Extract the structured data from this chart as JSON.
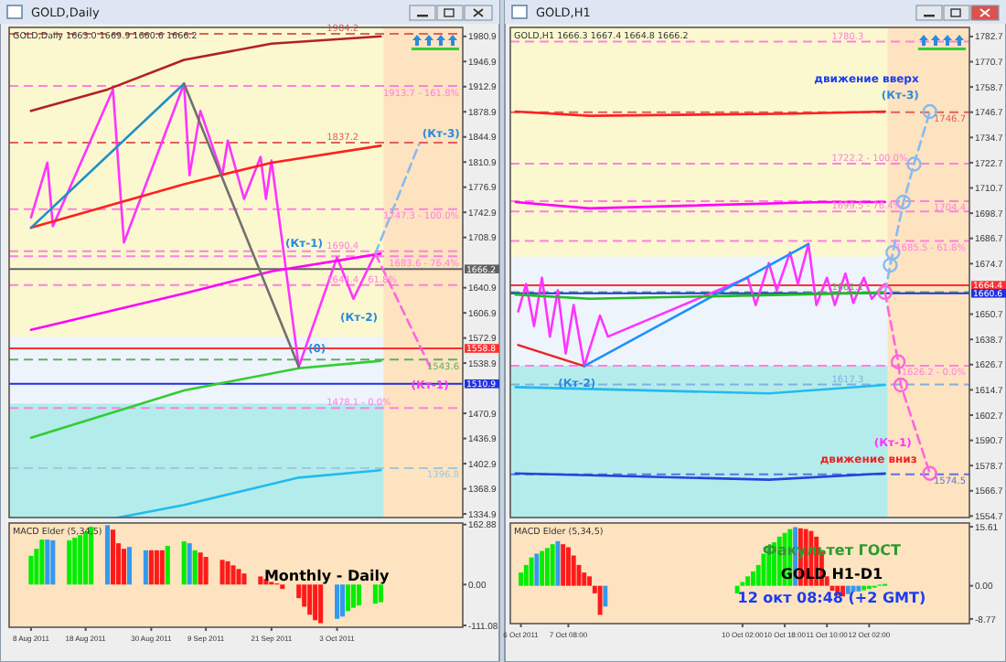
{
  "chart_data": [
    {
      "type": "line",
      "title": "GOLD,Daily",
      "subtitle": "GOLD,Daily  1663.0 1669.9 1660.6 1666.2",
      "xlim": [
        "2011-08-04",
        "2011-10-26"
      ],
      "ylim": [
        1330,
        1993
      ],
      "yticks": [
        1334.9,
        1368.9,
        1402.9,
        1436.9,
        1470.9,
        1538.9,
        1572.9,
        1606.9,
        1640.9,
        1708.9,
        1742.9,
        1776.9,
        1810.9,
        1844.9,
        1878.9,
        1912.9,
        1946.9,
        1980.9
      ],
      "tick_labels": "y",
      "bands": [
        {
          "axis": "y",
          "from": 1574,
          "to": 1993,
          "color": "#fbf8cf"
        },
        {
          "axis": "y",
          "from": 1484,
          "to": 1574,
          "color": "#eef4fc"
        },
        {
          "axis": "y",
          "from": 1330,
          "to": 1484,
          "color": "#b4ecec"
        },
        {
          "axis": "x",
          "from": "2011-10-11T12:00",
          "to": "2011-10-26",
          "color": "#fde3c0"
        }
      ],
      "ref_lines": [
        {
          "axis": "y",
          "value": 1984.2,
          "label": "1984.2",
          "color": "#e06060",
          "line_style": "dashed"
        },
        {
          "axis": "y",
          "value": 1913.7,
          "label": "1913.7 - 161.8%",
          "color": "#ff80e0",
          "line_style": "dashed"
        },
        {
          "axis": "y",
          "value": 1837.2,
          "label": "1837.2",
          "color": "#e06060",
          "line_style": "dashed"
        },
        {
          "axis": "y",
          "value": 1747.3,
          "label": "1747.3 - 100.0%",
          "color": "#ff80e0",
          "line_style": "dashed"
        },
        {
          "axis": "y",
          "value": 1690.4,
          "label": "1690.4",
          "color": "#ff80e0",
          "line_style": "dashed"
        },
        {
          "axis": "y",
          "value": 1683.6,
          "label": "1683.6 - 76.4%",
          "color": "#ff80e0",
          "line_style": "dashed"
        },
        {
          "axis": "y",
          "value": 1644.4,
          "label": "1644.4 - 61.8%",
          "color": "#ff80e0",
          "line_style": "dashed"
        },
        {
          "axis": "y",
          "value": 1543.6,
          "label": "1543.6",
          "color": "#60b060",
          "line_style": "dashed"
        },
        {
          "axis": "y",
          "value": 1478.1,
          "label": "1478.1 - 0.0%",
          "color": "#ff80e0",
          "line_style": "dashed"
        },
        {
          "axis": "y",
          "value": 1396.8,
          "label": "1396.8",
          "color": "#a0c8e0",
          "line_style": "dashed"
        },
        {
          "axis": "y",
          "value": 1666.2,
          "label": "1666.2",
          "color": "#606060",
          "line_style": "solid"
        },
        {
          "axis": "y",
          "value": 1558.8,
          "label": "1558.8",
          "color": "#ff3030",
          "line_style": "solid"
        },
        {
          "axis": "y",
          "value": 1510.9,
          "label": "1510.9",
          "color": "#2030e0",
          "line_style": "solid"
        }
      ],
      "series": [
        {
          "color": "#ff33ff",
          "x": [
            "2011-08-08",
            "2011-08-11",
            "2011-08-12",
            "2011-08-23",
            "2011-08-25",
            "2011-09-05",
            "2011-09-06",
            "2011-09-08",
            "2011-09-12",
            "2011-09-13",
            "2011-09-16",
            "2011-09-19",
            "2011-09-20",
            "2011-09-21",
            "2011-09-26",
            "2011-10-03",
            "2011-10-06",
            "2011-10-10"
          ],
          "values": [
            1736,
            1810,
            1724,
            1909,
            1702,
            1917,
            1793,
            1880,
            1793,
            1840,
            1761,
            1818,
            1761,
            1813,
            1534,
            1682,
            1626,
            1687
          ]
        },
        {
          "color": "#b22222",
          "x": [
            "2011-08-08",
            "2011-08-22",
            "2011-09-05",
            "2011-09-21",
            "2011-10-11"
          ],
          "values": [
            1880,
            1909,
            1949,
            1971,
            1981
          ]
        },
        {
          "color": "#ff2020",
          "x": [
            "2011-08-08",
            "2011-09-05",
            "2011-09-21",
            "2011-10-11"
          ],
          "values": [
            1722,
            1781,
            1810,
            1833
          ]
        },
        {
          "color": "#ff00ff",
          "x": [
            "2011-08-08",
            "2011-09-05",
            "2011-09-21",
            "2011-10-11"
          ],
          "values": [
            1584,
            1633,
            1663,
            1687
          ]
        },
        {
          "color": "#33cc33",
          "x": [
            "2011-08-08",
            "2011-09-05",
            "2011-09-26",
            "2011-10-11"
          ],
          "values": [
            1438,
            1502,
            1532,
            1542
          ]
        },
        {
          "color": "#22bbee",
          "x": [
            "2011-08-24",
            "2011-09-05",
            "2011-09-26",
            "2011-10-11"
          ],
          "values": [
            1330,
            1347,
            1384,
            1394
          ]
        },
        {
          "color": "#1e90c8",
          "x": [
            "2011-08-08",
            "2011-09-05"
          ],
          "values": [
            1722,
            1917
          ]
        },
        {
          "color": "#707070",
          "x": [
            "2011-09-05",
            "2011-09-26"
          ],
          "values": [
            1917,
            1534
          ]
        },
        {
          "color": "#88bbee",
          "line_style": "dashed",
          "x": [
            "2011-10-10",
            "2011-10-18"
          ],
          "values": [
            1687,
            1835
          ]
        },
        {
          "color": "#ff66dd",
          "line_style": "dashed",
          "x": [
            "2011-10-10",
            "2011-10-20"
          ],
          "values": [
            1687,
            1534
          ]
        }
      ],
      "annotations": [
        {
          "text": "(Кт-3)",
          "x": "2011-10-18",
          "y": 1835
        },
        {
          "text": "(Кт-1)",
          "x": "2011-10-03",
          "y": 1682
        },
        {
          "text": "(Кт-2)",
          "x": "2011-10-06",
          "y": 1626
        },
        {
          "text": "(0)",
          "x": "2011-09-26",
          "y": 1534
        },
        {
          "text": "(Кт-1)",
          "x": "2011-10-20",
          "y": 1534
        }
      ]
    },
    {
      "type": "bar",
      "title": "MACD Elder (5,34,5)",
      "xlim": [
        "2011-08-04",
        "2011-10-26"
      ],
      "xticks": [
        {
          "value": "2011-08-08",
          "label": "8 Aug 2011"
        },
        {
          "value": "2011-08-18",
          "label": "18 Aug 2011"
        },
        {
          "value": "2011-08-30",
          "label": "30 Aug 2011"
        },
        {
          "value": "2011-09-09",
          "label": "9 Sep 2011"
        },
        {
          "value": "2011-09-21",
          "label": "21 Sep 2011"
        },
        {
          "value": "2011-10-03",
          "label": "3 Oct 2011"
        }
      ],
      "ylim": [
        -116,
        167
      ],
      "yticks": [
        162.88,
        {
          "value": 0,
          "label": "0.00"
        },
        -111.08
      ],
      "x": [
        "2011-08-08",
        "2011-08-09",
        "2011-08-10",
        "2011-08-11",
        "2011-08-12",
        "2011-08-15",
        "2011-08-16",
        "2011-08-17",
        "2011-08-18",
        "2011-08-19",
        "2011-08-22",
        "2011-08-23",
        "2011-08-24",
        "2011-08-25",
        "2011-08-26",
        "2011-08-29",
        "2011-08-30",
        "2011-08-31",
        "2011-09-01",
        "2011-09-02",
        "2011-09-05",
        "2011-09-06",
        "2011-09-07",
        "2011-09-08",
        "2011-09-09",
        "2011-09-12",
        "2011-09-13",
        "2011-09-14",
        "2011-09-15",
        "2011-09-16",
        "2011-09-19",
        "2011-09-20",
        "2011-09-21",
        "2011-09-22",
        "2011-09-23",
        "2011-09-26",
        "2011-09-27",
        "2011-09-28",
        "2011-09-29",
        "2011-09-30",
        "2011-10-03",
        "2011-10-04",
        "2011-10-05",
        "2011-10-06",
        "2011-10-07",
        "2011-10-10",
        "2011-10-11"
      ],
      "values": [
        78,
        97,
        122,
        122,
        120,
        120,
        127,
        134,
        142,
        157,
        161,
        149,
        112,
        97,
        102,
        93,
        93,
        93,
        93,
        105,
        117,
        112,
        93,
        87,
        75,
        67,
        63,
        52,
        42,
        30,
        22,
        15,
        7,
        3,
        -12,
        -37,
        -60,
        -82,
        -97,
        -105,
        -93,
        -87,
        -72,
        -63,
        -57,
        -52,
        -48
      ],
      "colors": [
        "#00ee00",
        "#00ee00",
        "#00ee00",
        "#3399ee",
        "#3399ee",
        "#00ee00",
        "#00ee00",
        "#00ee00",
        "#00ee00",
        "#00ee00",
        "#3399ee",
        "#ff1a1a",
        "#ff1a1a",
        "#ff1a1a",
        "#3399ee",
        "#3399ee",
        "#ff1a1a",
        "#ff1a1a",
        "#ff1a1a",
        "#00ee00",
        "#00ee00",
        "#3399ee",
        "#00ee00",
        "#ff1a1a",
        "#ff1a1a",
        "#ff1a1a",
        "#ff1a1a",
        "#ff1a1a",
        "#ff1a1a",
        "#ff1a1a",
        "#ff1a1a",
        "#ff1a1a",
        "#ff1a1a",
        "#ff1a1a",
        "#ff1a1a",
        "#ff1a1a",
        "#ff1a1a",
        "#ff1a1a",
        "#ff1a1a",
        "#ff1a1a",
        "#3399ee",
        "#3399ee",
        "#00ee00",
        "#00ee00",
        "#00ee00",
        "#00ee00",
        "#00ee00"
      ],
      "annotations": [
        "Monthly - Daily"
      ]
    },
    {
      "type": "line",
      "title": "GOLD,H1",
      "subtitle": "GOLD,H1  1666.3 1667.4 1664.8 1666.2",
      "xlim": [
        "2011-10-06T10:00",
        "2011-10-13T16:00"
      ],
      "ylim": [
        1554,
        1787
      ],
      "yticks": [
        1554.7,
        1566.7,
        1578.7,
        1590.7,
        1602.7,
        1614.7,
        1626.7,
        1638.7,
        1650.7,
        1674.7,
        1686.7,
        1698.7,
        1710.7,
        1722.7,
        1734.7,
        1746.7,
        1758.7,
        1770.7,
        1782.7
      ],
      "tick_labels": "y",
      "bands": [
        {
          "axis": "y",
          "from": 1678,
          "to": 1787,
          "color": "#fbf8cf"
        },
        {
          "axis": "y",
          "from": 1626.2,
          "to": 1678,
          "color": "#eef4fc"
        },
        {
          "axis": "y",
          "from": 1554,
          "to": 1626.2,
          "color": "#b4ecec"
        },
        {
          "axis": "x",
          "from": "2011-10-12T09:00",
          "to": "2011-10-13T16:00",
          "color": "#fde3c0"
        }
      ],
      "ref_lines": [
        {
          "axis": "y",
          "value": 1780.3,
          "label": "1780.3",
          "color": "#ff80e0",
          "line_style": "dashed"
        },
        {
          "axis": "y",
          "value": 1746.7,
          "label": "1746.7",
          "color": "#e06060",
          "line_style": "dashed"
        },
        {
          "axis": "y",
          "value": 1722.2,
          "label": "1722.2 - 100.0%",
          "color": "#ff80e0",
          "line_style": "dashed"
        },
        {
          "axis": "y",
          "value": 1704.4,
          "label": "1704.4",
          "color": "#ff80e0",
          "line_style": "dashed"
        },
        {
          "axis": "y",
          "value": 1699.5,
          "label": "1699.5 - 76.4%",
          "color": "#ff80e0",
          "line_style": "dashed"
        },
        {
          "axis": "y",
          "value": 1685.5,
          "label": "1685.5 - 61.8%",
          "color": "#ff80e0",
          "line_style": "dashed"
        },
        {
          "axis": "y",
          "value": 1661.1,
          "label": "1661.1",
          "color": "#60b060",
          "line_style": "dashed"
        },
        {
          "axis": "y",
          "value": 1626.2,
          "label": "1626.2 - 0.0%",
          "color": "#ff80e0",
          "line_style": "dashed"
        },
        {
          "axis": "y",
          "value": 1617.3,
          "label": "1617.3",
          "color": "#80b0e0",
          "line_style": "dashed"
        },
        {
          "axis": "y",
          "value": 1574.5,
          "label": "1574.5",
          "color": "#6070e0",
          "line_style": "dashed"
        },
        {
          "axis": "y",
          "value": 1664.4,
          "label": "1664.4",
          "color": "#ff3030",
          "line_style": "solid"
        },
        {
          "axis": "y",
          "value": 1660.6,
          "label": "1660.6",
          "color": "#2030e0",
          "line_style": "solid"
        }
      ],
      "series": [
        {
          "color": "#ff33ff",
          "x": [
            "2011-10-06T13:00",
            "2011-10-06T16:00",
            "2011-10-06T19:00",
            "2011-10-06T22:00",
            "2011-10-07T01:00",
            "2011-10-07T04:00",
            "2011-10-07T07:00",
            "2011-10-07T10:00",
            "2011-10-07T14:00",
            "2011-10-07T20:00",
            "2011-10-07T23:00",
            "2011-10-10T04:00",
            "2011-10-10T07:00",
            "2011-10-10T12:00",
            "2011-10-10T15:00",
            "2011-10-10T20:00",
            "2011-10-10T23:00",
            "2011-10-11T03:00",
            "2011-10-11T06:00",
            "2011-10-11T10:00",
            "2011-10-11T13:00",
            "2011-10-11T17:00",
            "2011-10-11T20:00",
            "2011-10-12T00:00",
            "2011-10-12T03:00",
            "2011-10-12T08:00"
          ],
          "values": [
            1652,
            1665,
            1645,
            1668,
            1640,
            1662,
            1632,
            1655,
            1626,
            1650,
            1640,
            1668,
            1655,
            1675,
            1662,
            1680,
            1665,
            1684,
            1655,
            1668,
            1655,
            1670,
            1656,
            1668,
            1658,
            1665
          ]
        },
        {
          "color": "#ee2222",
          "x": [
            "2011-10-06T13:00",
            "2011-10-07T14:00"
          ],
          "values": [
            1636,
            1626
          ]
        },
        {
          "color": "#1e90ff",
          "x": [
            "2011-10-07T14:00",
            "2011-10-11T03:00"
          ],
          "values": [
            1626,
            1684
          ]
        },
        {
          "color": "#ff2020",
          "x": [
            "2011-10-06T12:00",
            "2011-10-07T16:00",
            "2011-10-10T22:00",
            "2011-10-12T08:00"
          ],
          "values": [
            1747,
            1745,
            1746,
            1747
          ]
        },
        {
          "color": "#ff00ff",
          "x": [
            "2011-10-06T12:00",
            "2011-10-07T16:00",
            "2011-10-11T08:00",
            "2011-10-12T08:00"
          ],
          "values": [
            1704,
            1701,
            1704,
            1704
          ]
        },
        {
          "color": "#22bb22",
          "x": [
            "2011-10-06T12:00",
            "2011-10-07T16:00",
            "2011-10-10T22:00",
            "2011-10-12T08:00"
          ],
          "values": [
            1660,
            1658,
            1660,
            1661
          ]
        },
        {
          "color": "#22bbee",
          "x": [
            "2011-10-06T12:00",
            "2011-10-10T12:00",
            "2011-10-12T08:00"
          ],
          "values": [
            1616,
            1613,
            1617
          ]
        },
        {
          "color": "#2244dd",
          "x": [
            "2011-10-06T12:00",
            "2011-10-10T12:00",
            "2011-10-12T08:00"
          ],
          "values": [
            1575,
            1572,
            1575
          ]
        },
        {
          "color": "#88bbee",
          "line_style": "dashed",
          "marker": "circle",
          "x": [
            "2011-10-12T08:00",
            "2011-10-12T10:00",
            "2011-10-12T11:00",
            "2011-10-12T15:00",
            "2011-10-12T19:00",
            "2011-10-13T01:00"
          ],
          "values": [
            1661,
            1674,
            1680,
            1704,
            1722,
            1747
          ]
        },
        {
          "color": "#ff66dd",
          "line_style": "dashed",
          "marker": "circle",
          "x": [
            "2011-10-12T08:00",
            "2011-10-12T13:00",
            "2011-10-12T14:00",
            "2011-10-13T01:00"
          ],
          "values": [
            1661,
            1628,
            1617,
            1575
          ]
        }
      ],
      "annotations": [
        {
          "text": "(Кт-3)",
          "x": "2011-10-13T01:00",
          "y": 1747
        },
        {
          "text": "движение вверх",
          "x": "2011-10-13T01:00",
          "y": 1747
        },
        {
          "text": "(Кт-2)",
          "x": "2011-10-07T14:00",
          "y": 1626
        },
        {
          "text": "(Кт-1)",
          "x": "2011-10-13T01:00",
          "y": 1575
        },
        {
          "text": "движение вниз",
          "x": "2011-10-13T01:00",
          "y": 1575
        }
      ]
    },
    {
      "type": "bar",
      "title": "MACD Elder (5,34,5)",
      "xlim": [
        "2011-10-06T10:00",
        "2011-10-13T16:00"
      ],
      "xticks": [
        {
          "value": "2011-10-06T14:00",
          "label": "6 Oct 2011"
        },
        {
          "value": "2011-10-07T08:00",
          "label": "7 Oct 08:00"
        },
        {
          "value": "2011-10-10T02:00",
          "label": "10 Oct 02:00"
        },
        {
          "value": "2011-10-10T18:00",
          "label": "10 Oct 18:00"
        },
        {
          "value": "2011-10-11T10:00",
          "label": "11 Oct 10:00"
        },
        {
          "value": "2011-10-12T02:00",
          "label": "12 Oct 02:00"
        }
      ],
      "ylim": [
        -10,
        16.6
      ],
      "yticks": [
        15.61,
        {
          "value": 0,
          "label": "0.00"
        },
        -8.77
      ],
      "x": [
        "2011-10-06T14:00",
        "2011-10-06T16:00",
        "2011-10-06T18:00",
        "2011-10-06T20:00",
        "2011-10-06T22:00",
        "2011-10-07T00:00",
        "2011-10-07T02:00",
        "2011-10-07T04:00",
        "2011-10-07T06:00",
        "2011-10-07T08:00",
        "2011-10-07T10:00",
        "2011-10-07T12:00",
        "2011-10-07T14:00",
        "2011-10-07T16:00",
        "2011-10-07T18:00",
        "2011-10-07T20:00",
        "2011-10-07T22:00",
        "2011-10-10T00:00",
        "2011-10-10T02:00",
        "2011-10-10T04:00",
        "2011-10-10T06:00",
        "2011-10-10T08:00",
        "2011-10-10T10:00",
        "2011-10-10T12:00",
        "2011-10-10T14:00",
        "2011-10-10T16:00",
        "2011-10-10T18:00",
        "2011-10-10T20:00",
        "2011-10-10T22:00",
        "2011-10-11T00:00",
        "2011-10-11T02:00",
        "2011-10-11T04:00",
        "2011-10-11T06:00",
        "2011-10-11T08:00",
        "2011-10-11T10:00",
        "2011-10-11T12:00",
        "2011-10-11T14:00",
        "2011-10-11T16:00",
        "2011-10-11T18:00",
        "2011-10-11T20:00",
        "2011-10-11T22:00",
        "2011-10-12T00:00",
        "2011-10-12T02:00",
        "2011-10-12T04:00",
        "2011-10-12T06:00",
        "2011-10-12T08:00"
      ],
      "values": [
        3.5,
        5.5,
        7.5,
        8.5,
        9.2,
        10,
        11,
        11.8,
        11,
        10.2,
        8,
        5.5,
        3.5,
        2.5,
        -2,
        -7.7,
        -5.5,
        -2,
        1,
        2.5,
        3.8,
        5.5,
        8.5,
        10.5,
        11.5,
        13,
        14,
        15,
        15.5,
        15.2,
        15,
        14.5,
        13,
        9,
        2.5,
        -1.3,
        -2.5,
        -2.8,
        -2.2,
        -1.6,
        -1.5,
        -1.2,
        -0.8,
        -0.5,
        0.3,
        0.5
      ],
      "colors": [
        "#00ee00",
        "#00ee00",
        "#00ee00",
        "#3399ee",
        "#00ee00",
        "#00ee00",
        "#00ee00",
        "#3399ee",
        "#ff1a1a",
        "#ff1a1a",
        "#ff1a1a",
        "#ff1a1a",
        "#ff1a1a",
        "#ff1a1a",
        "#ff1a1a",
        "#ff1a1a",
        "#3399ee",
        "#00ee00",
        "#00ee00",
        "#00ee00",
        "#00ee00",
        "#00ee00",
        "#00ee00",
        "#00ee00",
        "#00ee00",
        "#00ee00",
        "#00ee00",
        "#00ee00",
        "#3399ee",
        "#ff1a1a",
        "#ff1a1a",
        "#ff1a1a",
        "#ff1a1a",
        "#ff1a1a",
        "#ff1a1a",
        "#ff1a1a",
        "#ff1a1a",
        "#ff1a1a",
        "#3399ee",
        "#3399ee",
        "#3399ee",
        "#00ee00",
        "#00ee00",
        "#00ee00",
        "#00ee00",
        "#00ee00"
      ],
      "annotations": [
        "Факультет ГОСТ",
        "GOLD   H1-D1",
        "12 окт 08:48 (+2 GMT)"
      ]
    }
  ]
}
